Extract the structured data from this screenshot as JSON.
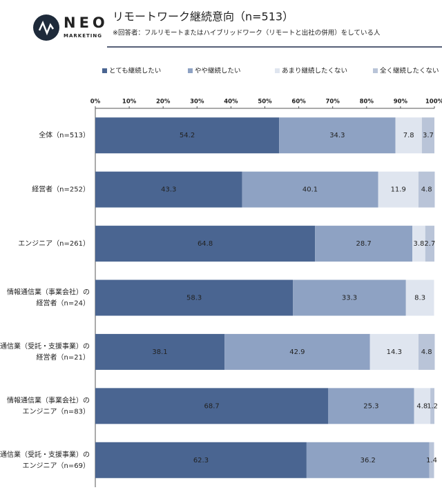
{
  "logo": {
    "name": "NEO",
    "sub": "MARKETING"
  },
  "chart_data": {
    "type": "stacked-barh",
    "title": "リモートワーク継続意向（n=513）",
    "subtitle": "※回答者：フルリモートまたはハイブリッドワーク（リモートと出社の併用）をしている人",
    "categories": [
      [
        "全体（n=513）"
      ],
      [
        "経営者（n=252）"
      ],
      [
        "エンジニア（n=261）"
      ],
      [
        "情報通信業（事業会社）の",
        "経営者（n=24）"
      ],
      [
        "情報通信業（受託・支援事業）の",
        "経営者（n=21）"
      ],
      [
        "情報通信業（事業会社）の",
        "エンジニア（n=83）"
      ],
      [
        "情報通信業（受託・支援事業）の",
        "エンジニア（n=69）"
      ]
    ],
    "series": [
      {
        "name": "とても継続したい",
        "color": "#4a6591",
        "values": [
          54.2,
          43.3,
          64.8,
          58.3,
          38.1,
          68.7,
          62.3
        ]
      },
      {
        "name": "やや継続したい",
        "color": "#8ea2c3",
        "values": [
          34.3,
          40.1,
          28.7,
          33.3,
          42.9,
          25.3,
          36.2
        ]
      },
      {
        "name": "あまり継続したくない",
        "color": "#dfe5ef",
        "values": [
          7.8,
          11.9,
          3.8,
          8.3,
          14.3,
          4.8,
          null
        ]
      },
      {
        "name": "全く継続したくない",
        "color": "#b9c4d8",
        "values": [
          3.7,
          4.8,
          2.7,
          null,
          4.8,
          1.2,
          1.4
        ]
      }
    ],
    "xlim": [
      0,
      100
    ],
    "xticks": [
      {
        "value": 0,
        "label": "0%"
      },
      {
        "value": 10,
        "label": "10%"
      },
      {
        "value": 20,
        "label": "20%"
      },
      {
        "value": 30,
        "label": "30%"
      },
      {
        "value": 40,
        "label": "40%"
      },
      {
        "value": 50,
        "label": "50%"
      },
      {
        "value": 60,
        "label": "60%"
      },
      {
        "value": 70,
        "label": "70%"
      },
      {
        "value": 80,
        "label": "80%"
      },
      {
        "value": 90,
        "label": "90%"
      },
      {
        "value": 100,
        "label": "100%"
      }
    ]
  }
}
